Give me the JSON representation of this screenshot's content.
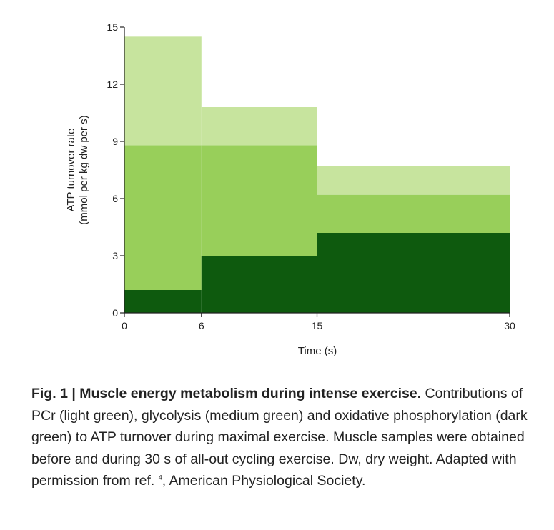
{
  "chart_data": {
    "type": "area",
    "title": "",
    "xlabel": "Time (s)",
    "ylabel_line1": "ATP turnover rate",
    "ylabel_line2": "(mmol per kg dw per s)",
    "xticks": [
      0,
      6,
      15,
      30
    ],
    "yticks": [
      0,
      3,
      6,
      9,
      12,
      15
    ],
    "xlim": [
      0,
      30
    ],
    "ylim": [
      0,
      15
    ],
    "stacking": "stacked step",
    "intervals": [
      [
        0,
        6
      ],
      [
        6,
        15
      ],
      [
        15,
        30
      ]
    ],
    "series": [
      {
        "label": "oxidative phosphorylation (dark green)",
        "color": "#0e5a0e",
        "values": [
          1.2,
          3.0,
          4.2
        ]
      },
      {
        "label": "glycolysis (medium green)",
        "color": "#98cf5a",
        "values": [
          7.6,
          5.8,
          2.0
        ]
      },
      {
        "label": "PCr (light green)",
        "color": "#c7e49e",
        "values": [
          5.7,
          2.0,
          1.5
        ]
      }
    ],
    "totals": [
      14.5,
      10.8,
      7.7
    ]
  },
  "caption": {
    "lead": "Fig. 1 | Muscle energy metabolism during intense exercise.",
    "body_part1": " Contributions of PCr (light green), glycolysis (medium green) and oxidative phosphorylation (dark green) to ATP turnover during maximal exercise. Muscle samples were obtained before and during 30 s of all-out cycling exercise. Dw, dry weight. Adapted with permission from ref. ",
    "ref": "4",
    "body_part2": ", American Physiological Society."
  }
}
